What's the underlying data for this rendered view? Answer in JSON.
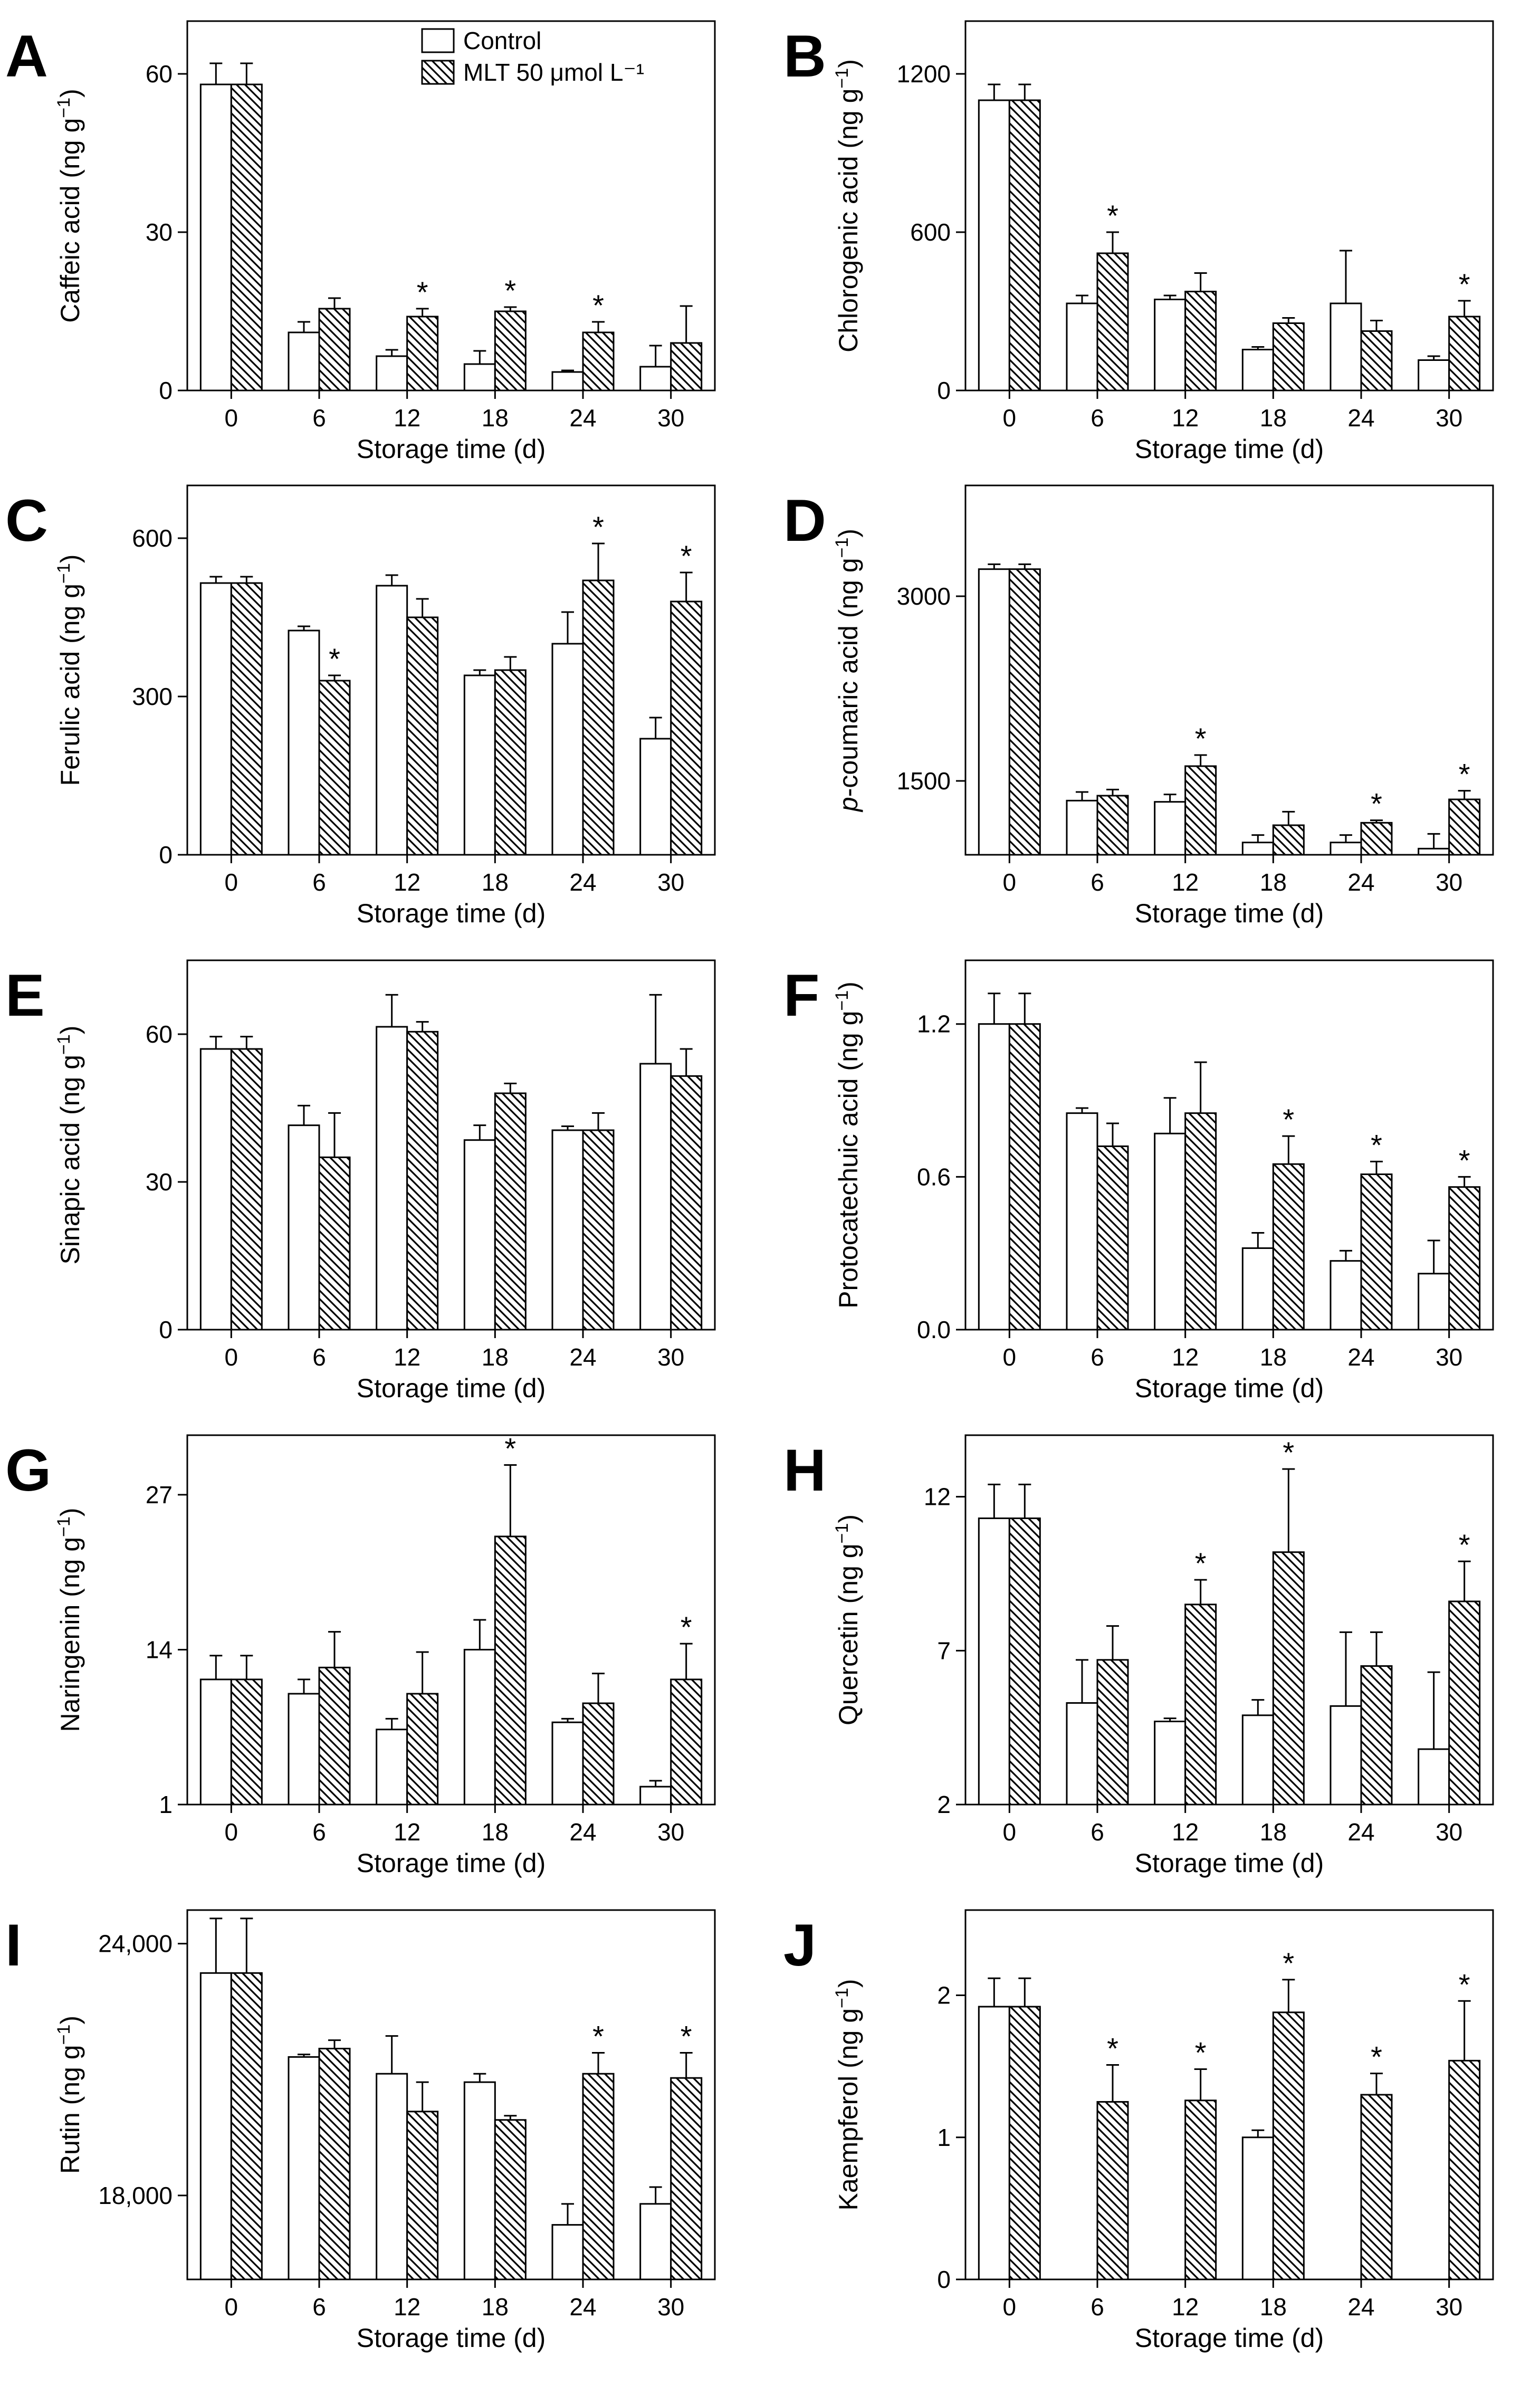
{
  "figure": {
    "legend": [
      {
        "name": "Control",
        "pattern": "none"
      },
      {
        "name": "MLT 50 μmol L⁻¹",
        "pattern": "hatch"
      }
    ],
    "colors": {
      "stroke": "#000000",
      "background": "#ffffff"
    }
  },
  "chart_data": [
    {
      "type": "bar",
      "panel": "A",
      "title": "",
      "xlabel": "Storage time (d)",
      "ylabel": "Caffeic acid (ng g⁻¹)",
      "categories": [
        "0",
        "6",
        "12",
        "18",
        "24",
        "30"
      ],
      "ylim": [
        0,
        70
      ],
      "yticks": [
        0,
        30,
        60
      ],
      "ytick_labels": [
        "0",
        "30",
        "60"
      ],
      "series": [
        {
          "name": "Control",
          "values": [
            58,
            11,
            6.5,
            5,
            3.5,
            4.5
          ],
          "errors": [
            4,
            2,
            1.2,
            2.5,
            0.3,
            4
          ]
        },
        {
          "name": "MLT 50 μmol L⁻¹",
          "values": [
            58,
            15.5,
            14,
            15,
            11,
            9
          ],
          "errors": [
            4,
            2,
            1.5,
            0.8,
            2,
            7
          ],
          "significant": [
            false,
            false,
            true,
            true,
            true,
            false
          ]
        }
      ]
    },
    {
      "type": "bar",
      "panel": "B",
      "title": "",
      "xlabel": "Storage time (d)",
      "ylabel": "Chlorogenic acid (ng g⁻¹)",
      "categories": [
        "0",
        "6",
        "12",
        "18",
        "24",
        "30"
      ],
      "ylim": [
        0,
        1400
      ],
      "yticks": [
        0,
        600,
        1200
      ],
      "ytick_labels": [
        "0",
        "600",
        "1200"
      ],
      "series": [
        {
          "name": "Control",
          "values": [
            1100,
            330,
            345,
            155,
            330,
            115
          ],
          "errors": [
            60,
            30,
            15,
            10,
            200,
            15
          ]
        },
        {
          "name": "MLT 50 μmol L⁻¹",
          "values": [
            1100,
            520,
            375,
            255,
            225,
            280
          ],
          "errors": [
            60,
            80,
            70,
            20,
            40,
            60
          ],
          "significant": [
            false,
            true,
            false,
            false,
            false,
            true
          ]
        }
      ]
    },
    {
      "type": "bar",
      "panel": "C",
      "title": "",
      "xlabel": "Storage time (d)",
      "ylabel": "Ferulic acid (ng g⁻¹)",
      "categories": [
        "0",
        "6",
        "12",
        "18",
        "24",
        "30"
      ],
      "ylim": [
        0,
        700
      ],
      "yticks": [
        0,
        300,
        600
      ],
      "ytick_labels": [
        "0",
        "300",
        "600"
      ],
      "series": [
        {
          "name": "Control",
          "values": [
            515,
            425,
            510,
            340,
            400,
            220
          ],
          "errors": [
            12,
            8,
            20,
            10,
            60,
            40
          ]
        },
        {
          "name": "MLT 50 μmol L⁻¹",
          "values": [
            515,
            330,
            450,
            350,
            520,
            480
          ],
          "errors": [
            12,
            10,
            35,
            25,
            70,
            55
          ],
          "significant": [
            false,
            true,
            false,
            false,
            true,
            true
          ]
        }
      ]
    },
    {
      "type": "bar",
      "panel": "D",
      "title": "",
      "xlabel": "Storage time (d)",
      "ylabel": "p-coumaric acid (ng g⁻¹)",
      "categories": [
        "0",
        "6",
        "12",
        "18",
        "24",
        "30"
      ],
      "ylim": [
        900,
        3900
      ],
      "yticks": [
        1500,
        3000
      ],
      "ytick_labels": [
        "1500",
        "3000"
      ],
      "series": [
        {
          "name": "Control",
          "values": [
            3220,
            1340,
            1330,
            1000,
            1000,
            950
          ],
          "errors": [
            40,
            70,
            60,
            60,
            60,
            120
          ]
        },
        {
          "name": "MLT 50 μmol L⁻¹",
          "values": [
            3220,
            1380,
            1620,
            1140,
            1160,
            1350
          ],
          "errors": [
            40,
            50,
            90,
            110,
            20,
            70
          ],
          "significant": [
            false,
            false,
            true,
            false,
            true,
            true
          ]
        }
      ]
    },
    {
      "type": "bar",
      "panel": "E",
      "title": "",
      "xlabel": "Storage time (d)",
      "ylabel": "Sinapic acid (ng g⁻¹)",
      "categories": [
        "0",
        "6",
        "12",
        "18",
        "24",
        "30"
      ],
      "ylim": [
        0,
        75
      ],
      "yticks": [
        0,
        30,
        60
      ],
      "ytick_labels": [
        "0",
        "30",
        "60"
      ],
      "series": [
        {
          "name": "Control",
          "values": [
            57,
            41.5,
            61.5,
            38.5,
            40.5,
            54
          ],
          "errors": [
            2.5,
            4,
            6.5,
            3,
            0.8,
            14
          ]
        },
        {
          "name": "MLT 50 μmol L⁻¹",
          "values": [
            57,
            35,
            60.5,
            48,
            40.5,
            51.5
          ],
          "errors": [
            2.5,
            9,
            2,
            2,
            3.5,
            5.5
          ],
          "significant": [
            false,
            false,
            false,
            false,
            false,
            false
          ]
        }
      ]
    },
    {
      "type": "bar",
      "panel": "F",
      "title": "",
      "xlabel": "Storage time (d)",
      "ylabel": "Protocatechuic acid (ng g⁻¹)",
      "categories": [
        "0",
        "6",
        "12",
        "18",
        "24",
        "30"
      ],
      "ylim": [
        0,
        1.45
      ],
      "yticks": [
        0,
        0.6,
        1.2
      ],
      "ytick_labels": [
        "0.0",
        "0.6",
        "1.2"
      ],
      "series": [
        {
          "name": "Control",
          "values": [
            1.2,
            0.85,
            0.77,
            0.32,
            0.27,
            0.22
          ],
          "errors": [
            0.12,
            0.02,
            0.14,
            0.06,
            0.04,
            0.13
          ]
        },
        {
          "name": "MLT 50 μmol L⁻¹",
          "values": [
            1.2,
            0.72,
            0.85,
            0.65,
            0.61,
            0.56
          ],
          "errors": [
            0.12,
            0.09,
            0.2,
            0.11,
            0.05,
            0.04
          ],
          "significant": [
            false,
            false,
            false,
            true,
            true,
            true
          ]
        }
      ]
    },
    {
      "type": "bar",
      "panel": "G",
      "title": "",
      "xlabel": "Storage time (d)",
      "ylabel": "Naringenin (ng g⁻¹)",
      "categories": [
        "0",
        "6",
        "12",
        "18",
        "24",
        "30"
      ],
      "ylim": [
        1,
        32
      ],
      "yticks": [
        1,
        14,
        27
      ],
      "ytick_labels": [
        "1",
        "14",
        "27"
      ],
      "series": [
        {
          "name": "Control",
          "values": [
            11.5,
            10.3,
            7.3,
            14,
            7.9,
            2.5
          ],
          "errors": [
            2,
            1.2,
            0.9,
            2.5,
            0.3,
            0.5
          ]
        },
        {
          "name": "MLT 50 μmol L⁻¹",
          "values": [
            11.5,
            12.5,
            10.3,
            23.5,
            9.5,
            11.5
          ],
          "errors": [
            2,
            3,
            3.5,
            6,
            2.5,
            3
          ],
          "significant": [
            false,
            false,
            false,
            true,
            false,
            true
          ]
        }
      ]
    },
    {
      "type": "bar",
      "panel": "H",
      "title": "",
      "xlabel": "Storage time (d)",
      "ylabel": "Quercetin (ng g⁻¹)",
      "categories": [
        "0",
        "6",
        "12",
        "18",
        "24",
        "30"
      ],
      "ylim": [
        2,
        14
      ],
      "yticks": [
        2,
        7,
        12
      ],
      "ytick_labels": [
        "2",
        "7",
        "12"
      ],
      "series": [
        {
          "name": "Control",
          "values": [
            11.3,
            5.3,
            4.7,
            4.9,
            5.2,
            3.8
          ],
          "errors": [
            1.1,
            1.4,
            0.1,
            0.5,
            2.4,
            2.5
          ]
        },
        {
          "name": "MLT 50 μmol L⁻¹",
          "values": [
            11.3,
            6.7,
            8.5,
            10.2,
            6.5,
            8.6
          ],
          "errors": [
            1.1,
            1.1,
            0.8,
            2.7,
            1.1,
            1.3
          ],
          "significant": [
            false,
            false,
            true,
            true,
            false,
            true
          ]
        }
      ]
    },
    {
      "type": "bar",
      "panel": "I",
      "title": "",
      "xlabel": "Storage time (d)",
      "ylabel": "Rutin (ng g⁻¹)",
      "categories": [
        "0",
        "6",
        "12",
        "18",
        "24",
        "30"
      ],
      "ylim": [
        16000,
        24800
      ],
      "yticks": [
        18000,
        24000
      ],
      "ytick_labels": [
        "18,000",
        "24,000"
      ],
      "series": [
        {
          "name": "Control",
          "values": [
            23300,
            21300,
            20900,
            20700,
            17300,
            17800
          ],
          "errors": [
            1300,
            60,
            900,
            200,
            500,
            400
          ]
        },
        {
          "name": "MLT 50 μmol L⁻¹",
          "values": [
            23300,
            21500,
            20000,
            19800,
            20900,
            20800
          ],
          "errors": [
            1300,
            200,
            700,
            100,
            500,
            600
          ],
          "significant": [
            false,
            false,
            false,
            false,
            true,
            true
          ]
        }
      ]
    },
    {
      "type": "bar",
      "panel": "J",
      "title": "",
      "xlabel": "Storage time (d)",
      "ylabel": "Kaempferol (ng g⁻¹)",
      "categories": [
        "0",
        "6",
        "12",
        "18",
        "24",
        "30"
      ],
      "ylim": [
        0,
        2.6
      ],
      "yticks": [
        0,
        1,
        2
      ],
      "ytick_labels": [
        "0",
        "1",
        "2"
      ],
      "series": [
        {
          "name": "Control",
          "values": [
            1.92,
            0,
            0,
            1.0,
            0,
            0
          ],
          "errors": [
            0.2,
            0,
            0,
            0.05,
            0,
            0
          ]
        },
        {
          "name": "MLT 50 μmol L⁻¹",
          "values": [
            1.92,
            1.25,
            1.26,
            1.88,
            1.3,
            1.54
          ],
          "errors": [
            0.2,
            0.26,
            0.22,
            0.23,
            0.15,
            0.42
          ],
          "significant": [
            false,
            true,
            true,
            true,
            true,
            true
          ]
        }
      ]
    }
  ]
}
